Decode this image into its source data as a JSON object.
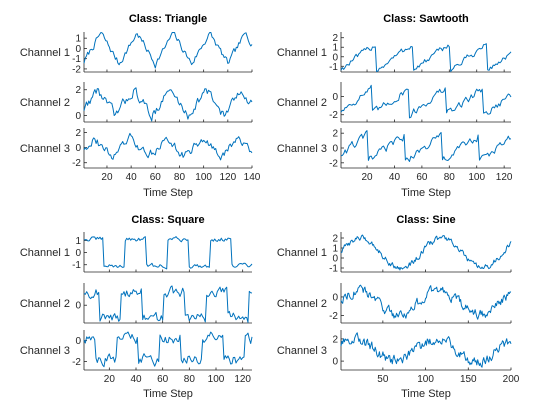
{
  "colors": {
    "line": "#0072BD",
    "axis": "#262626"
  },
  "chart_data": [
    {
      "type": "line",
      "title": "Class: Triangle",
      "xlabel": "Time Step",
      "xlim": [
        1,
        140
      ],
      "xticks": [
        20,
        40,
        60,
        80,
        100,
        120,
        140
      ],
      "waveform": "triangle",
      "period": 30,
      "channels": [
        {
          "name": "Channel 1",
          "ylim": [
            -2.3,
            1.6
          ],
          "yticks": [
            1,
            0,
            -1,
            -2
          ],
          "amplitude": 1.5,
          "noise": 0.35
        },
        {
          "name": "Channel 2",
          "ylim": [
            -0.5,
            2.6
          ],
          "yticks": [
            2,
            0
          ],
          "amplitude": 1.0,
          "offset": 1.0,
          "noise": 0.4
        },
        {
          "name": "Channel 3",
          "ylim": [
            -2.7,
            2.6
          ],
          "yticks": [
            2,
            0,
            -2
          ],
          "amplitude": 1.2,
          "noise": 0.6
        }
      ]
    },
    {
      "type": "line",
      "title": "Class: Sawtooth",
      "xlabel": "Time Step",
      "xlim": [
        1,
        125
      ],
      "xticks": [
        20,
        40,
        60,
        80,
        100,
        120
      ],
      "waveform": "sawtooth",
      "period": 27,
      "channels": [
        {
          "name": "Channel 1",
          "ylim": [
            -1.6,
            2.6
          ],
          "yticks": [
            2,
            1,
            0,
            -1
          ],
          "amplitude": 1.4,
          "noise": 0.35
        },
        {
          "name": "Channel 2",
          "ylim": [
            -2.8,
            1.6
          ],
          "yticks": [
            0,
            -2
          ],
          "amplitude": 1.5,
          "offset": -0.5,
          "noise": 0.45
        },
        {
          "name": "Channel 3",
          "ylim": [
            -2.7,
            2.7
          ],
          "yticks": [
            2,
            0,
            -2
          ],
          "amplitude": 1.8,
          "noise": 0.6
        }
      ]
    },
    {
      "type": "line",
      "title": "Class: Square",
      "xlabel": "Time Step",
      "xlim": [
        1,
        127
      ],
      "xticks": [
        20,
        40,
        60,
        80,
        100,
        120
      ],
      "waveform": "square",
      "period": 32,
      "channels": [
        {
          "name": "Channel 1",
          "ylim": [
            -1.6,
            1.7
          ],
          "yticks": [
            1,
            0,
            -1
          ],
          "amplitude": 1.1,
          "noise": 0.2
        },
        {
          "name": "Channel 2",
          "ylim": [
            -1.6,
            2.0
          ],
          "yticks": [
            0
          ],
          "amplitude": 1.2,
          "noise": 0.5
        },
        {
          "name": "Channel 3",
          "ylim": [
            -2.8,
            1.0
          ],
          "yticks": [
            0,
            -2
          ],
          "amplitude": 1.0,
          "offset": -0.8,
          "noise": 0.6
        }
      ]
    },
    {
      "type": "line",
      "title": "Class: Sine",
      "xlabel": "Time Step",
      "xlim": [
        1,
        200
      ],
      "xticks": [
        50,
        100,
        150,
        200
      ],
      "waveform": "sine",
      "period": 95,
      "channels": [
        {
          "name": "Channel 1",
          "ylim": [
            -1.4,
            2.6
          ],
          "yticks": [
            2,
            1,
            0,
            -1
          ],
          "amplitude": 1.5,
          "offset": 0.5,
          "noise": 0.3
        },
        {
          "name": "Channel 2",
          "ylim": [
            -2.8,
            1.5
          ],
          "yticks": [
            0,
            -2
          ],
          "amplitude": 1.3,
          "offset": -0.6,
          "noise": 0.55
        },
        {
          "name": "Channel 3",
          "ylim": [
            -0.8,
            2.8
          ],
          "yticks": [
            2,
            0
          ],
          "amplitude": 1.0,
          "offset": 1.0,
          "noise": 0.5
        }
      ]
    }
  ]
}
